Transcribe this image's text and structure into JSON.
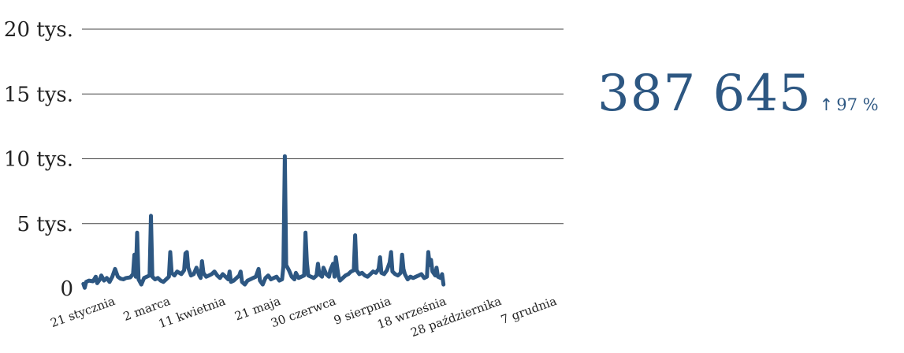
{
  "chart_data": {
    "type": "line",
    "title": "",
    "xlabel": "",
    "ylabel": "",
    "ylim": [
      0,
      20000
    ],
    "grid": true,
    "yticks": [
      {
        "value": 0,
        "label": "0"
      },
      {
        "value": 5000,
        "label": "5 tys."
      },
      {
        "value": 10000,
        "label": "10 tys."
      },
      {
        "value": 15000,
        "label": "15 tys."
      },
      {
        "value": 20000,
        "label": "20 tys."
      }
    ],
    "xticks": [
      {
        "day": 20,
        "label": "21 stycznia"
      },
      {
        "day": 60,
        "label": "2 marca"
      },
      {
        "day": 100,
        "label": "11 kwietnia"
      },
      {
        "day": 140,
        "label": "21 maja"
      },
      {
        "day": 180,
        "label": "30 czerwca"
      },
      {
        "day": 220,
        "label": "9 sierpnia"
      },
      {
        "day": 260,
        "label": "18 września"
      },
      {
        "day": 300,
        "label": "28 października"
      },
      {
        "day": 340,
        "label": "7 grudnia"
      }
    ],
    "series": [
      {
        "values": [
          [
            1,
            350
          ],
          [
            2,
            50
          ],
          [
            3,
            500
          ],
          [
            5,
            600
          ],
          [
            8,
            550
          ],
          [
            10,
            900
          ],
          [
            11,
            400
          ],
          [
            13,
            700
          ],
          [
            14,
            1000
          ],
          [
            16,
            600
          ],
          [
            18,
            800
          ],
          [
            20,
            500
          ],
          [
            22,
            900
          ],
          [
            24,
            1500
          ],
          [
            26,
            900
          ],
          [
            28,
            750
          ],
          [
            30,
            700
          ],
          [
            32,
            800
          ],
          [
            35,
            850
          ],
          [
            37,
            1100
          ],
          [
            38,
            2600
          ],
          [
            39,
            900
          ],
          [
            40,
            4300
          ],
          [
            41,
            700
          ],
          [
            43,
            300
          ],
          [
            45,
            800
          ],
          [
            47,
            900
          ],
          [
            49,
            1000
          ],
          [
            50,
            5600
          ],
          [
            51,
            900
          ],
          [
            53,
            700
          ],
          [
            55,
            800
          ],
          [
            57,
            600
          ],
          [
            59,
            500
          ],
          [
            61,
            700
          ],
          [
            63,
            900
          ],
          [
            64,
            2800
          ],
          [
            65,
            1200
          ],
          [
            67,
            1000
          ],
          [
            69,
            1300
          ],
          [
            72,
            1100
          ],
          [
            74,
            1400
          ],
          [
            75,
            2700
          ],
          [
            76,
            2800
          ],
          [
            77,
            1600
          ],
          [
            79,
            1000
          ],
          [
            81,
            1100
          ],
          [
            83,
            1600
          ],
          [
            85,
            1000
          ],
          [
            86,
            800
          ],
          [
            87,
            2100
          ],
          [
            88,
            1200
          ],
          [
            90,
            900
          ],
          [
            92,
            1000
          ],
          [
            94,
            1100
          ],
          [
            96,
            1300
          ],
          [
            98,
            1000
          ],
          [
            100,
            800
          ],
          [
            102,
            1100
          ],
          [
            104,
            900
          ],
          [
            106,
            700
          ],
          [
            107,
            1300
          ],
          [
            108,
            500
          ],
          [
            110,
            600
          ],
          [
            112,
            800
          ],
          [
            114,
            1000
          ],
          [
            115,
            1300
          ],
          [
            116,
            500
          ],
          [
            118,
            300
          ],
          [
            120,
            600
          ],
          [
            122,
            700
          ],
          [
            124,
            800
          ],
          [
            126,
            900
          ],
          [
            128,
            1500
          ],
          [
            129,
            600
          ],
          [
            131,
            300
          ],
          [
            133,
            800
          ],
          [
            135,
            1000
          ],
          [
            137,
            700
          ],
          [
            139,
            800
          ],
          [
            141,
            900
          ],
          [
            143,
            600
          ],
          [
            145,
            700
          ],
          [
            146,
            1700
          ],
          [
            147,
            10200
          ],
          [
            148,
            1800
          ],
          [
            150,
            1400
          ],
          [
            152,
            900
          ],
          [
            154,
            700
          ],
          [
            155,
            1200
          ],
          [
            157,
            800
          ],
          [
            159,
            900
          ],
          [
            161,
            1000
          ],
          [
            162,
            4300
          ],
          [
            163,
            2000
          ],
          [
            164,
            1000
          ],
          [
            166,
            900
          ],
          [
            168,
            800
          ],
          [
            170,
            1000
          ],
          [
            171,
            1900
          ],
          [
            172,
            1100
          ],
          [
            174,
            900
          ],
          [
            175,
            1600
          ],
          [
            177,
            1100
          ],
          [
            179,
            900
          ],
          [
            180,
            1400
          ],
          [
            182,
            1900
          ],
          [
            183,
            900
          ],
          [
            184,
            2400
          ],
          [
            185,
            1600
          ],
          [
            186,
            900
          ],
          [
            187,
            600
          ],
          [
            189,
            800
          ],
          [
            191,
            1000
          ],
          [
            193,
            1100
          ],
          [
            195,
            1300
          ],
          [
            197,
            1400
          ],
          [
            198,
            4100
          ],
          [
            199,
            1400
          ],
          [
            201,
            1100
          ],
          [
            203,
            1200
          ],
          [
            205,
            1000
          ],
          [
            207,
            900
          ],
          [
            209,
            1100
          ],
          [
            211,
            1300
          ],
          [
            213,
            1200
          ],
          [
            215,
            1500
          ],
          [
            216,
            2400
          ],
          [
            217,
            1200
          ],
          [
            219,
            1100
          ],
          [
            221,
            1400
          ],
          [
            223,
            2000
          ],
          [
            224,
            2800
          ],
          [
            225,
            1300
          ],
          [
            227,
            1100
          ],
          [
            229,
            1000
          ],
          [
            231,
            1200
          ],
          [
            232,
            2600
          ],
          [
            233,
            1500
          ],
          [
            234,
            1100
          ],
          [
            236,
            700
          ],
          [
            238,
            900
          ],
          [
            240,
            800
          ],
          [
            242,
            900
          ],
          [
            244,
            1000
          ],
          [
            246,
            1100
          ],
          [
            248,
            800
          ],
          [
            250,
            900
          ],
          [
            251,
            2800
          ],
          [
            252,
            1800
          ],
          [
            253,
            2200
          ],
          [
            254,
            1300
          ],
          [
            256,
            1000
          ],
          [
            257,
            1600
          ],
          [
            258,
            900
          ],
          [
            260,
            800
          ],
          [
            261,
            1100
          ],
          [
            262,
            300
          ]
        ]
      }
    ]
  },
  "kpi": {
    "value": "387 645",
    "change": "97 %",
    "arrow_icon": "arrow-up-icon",
    "color": "#2d5782"
  }
}
